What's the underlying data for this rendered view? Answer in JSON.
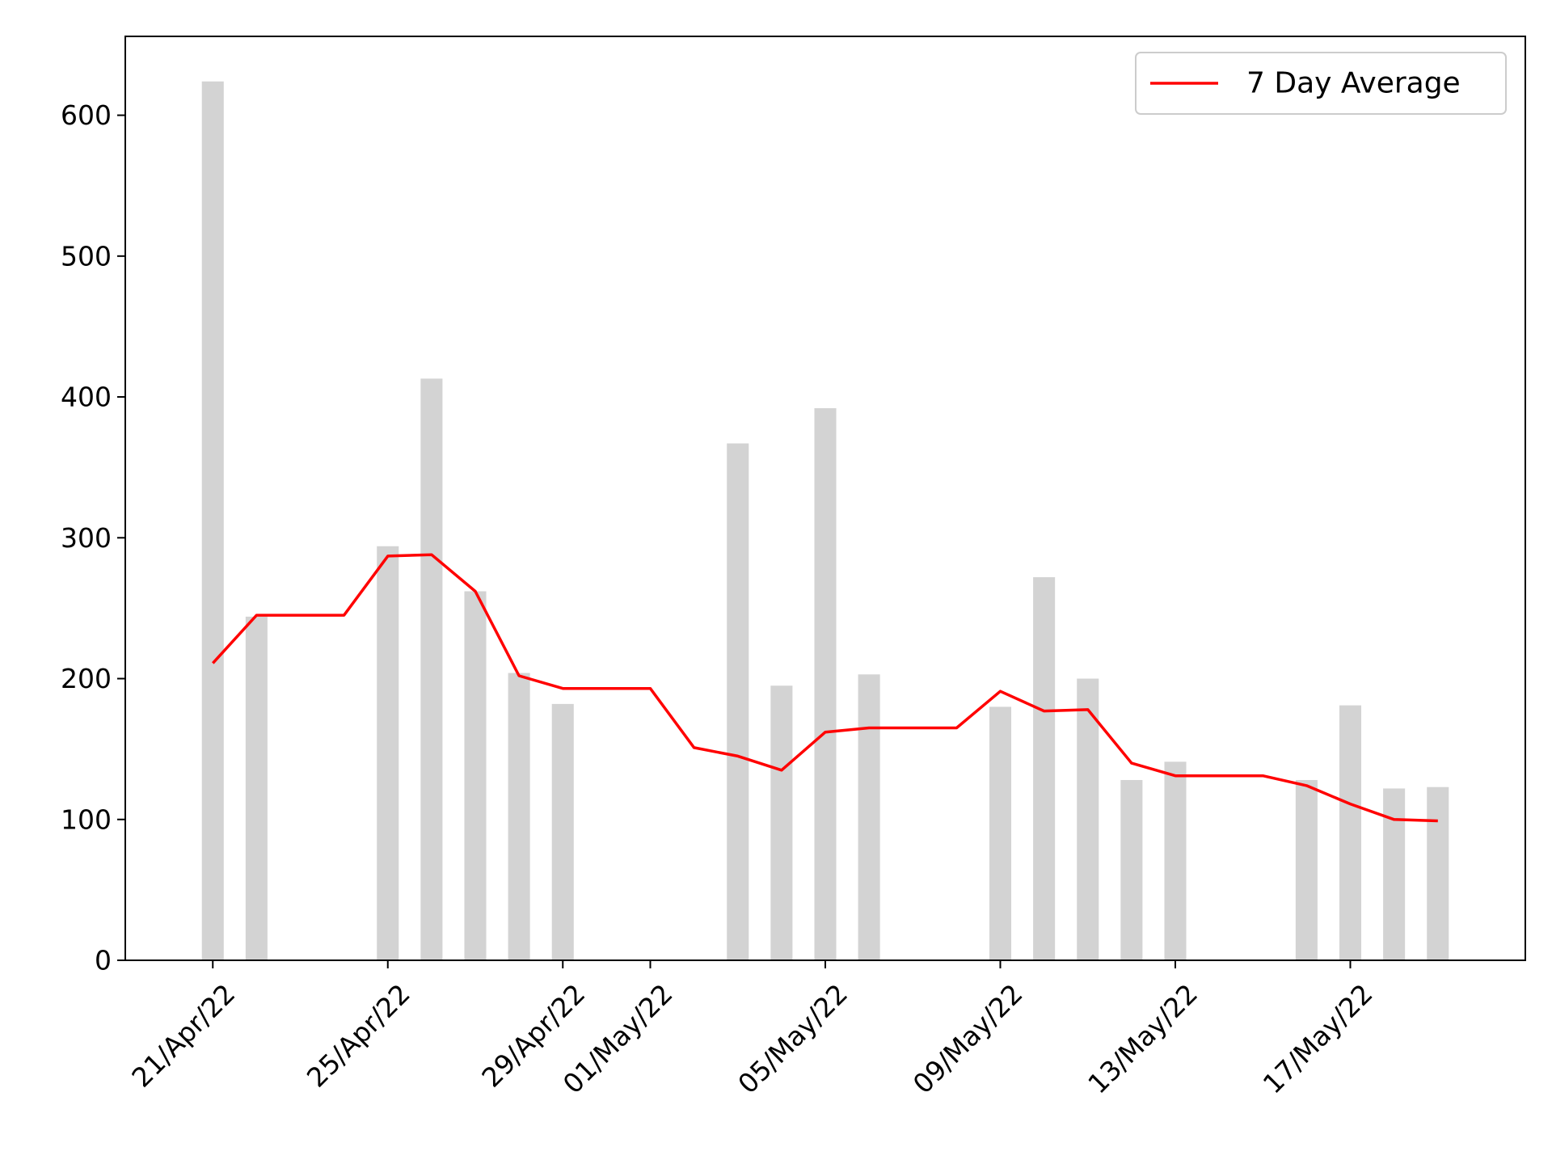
{
  "chart_data": {
    "type": "bar",
    "x_type": "date",
    "x_range": [
      "2022-04-19",
      "2022-05-21"
    ],
    "ylim": [
      0,
      656
    ],
    "grid": false,
    "legend_placement": "top-right",
    "xticks": [
      {
        "date": "2022-04-21",
        "label": "21/Apr/22"
      },
      {
        "date": "2022-04-25",
        "label": "25/Apr/22"
      },
      {
        "date": "2022-04-29",
        "label": "29/Apr/22"
      },
      {
        "date": "2022-05-01",
        "label": "01/May/22"
      },
      {
        "date": "2022-05-05",
        "label": "05/May/22"
      },
      {
        "date": "2022-05-09",
        "label": "09/May/22"
      },
      {
        "date": "2022-05-13",
        "label": "13/May/22"
      },
      {
        "date": "2022-05-17",
        "label": "17/May/22"
      }
    ],
    "yticks": [
      {
        "value": 0,
        "label": "0"
      },
      {
        "value": 100,
        "label": "100"
      },
      {
        "value": 200,
        "label": "200"
      },
      {
        "value": 300,
        "label": "300"
      },
      {
        "value": 400,
        "label": "400"
      },
      {
        "value": 500,
        "label": "500"
      },
      {
        "value": 600,
        "label": "600"
      }
    ],
    "bars": {
      "color": "#d3d3d3",
      "points": [
        {
          "date": "2022-04-21",
          "value": 624
        },
        {
          "date": "2022-04-22",
          "value": 244
        },
        {
          "date": "2022-04-25",
          "value": 294
        },
        {
          "date": "2022-04-26",
          "value": 413
        },
        {
          "date": "2022-04-27",
          "value": 262
        },
        {
          "date": "2022-04-28",
          "value": 204
        },
        {
          "date": "2022-04-29",
          "value": 182
        },
        {
          "date": "2022-05-03",
          "value": 367
        },
        {
          "date": "2022-05-04",
          "value": 195
        },
        {
          "date": "2022-05-05",
          "value": 392
        },
        {
          "date": "2022-05-06",
          "value": 203
        },
        {
          "date": "2022-05-09",
          "value": 180
        },
        {
          "date": "2022-05-10",
          "value": 272
        },
        {
          "date": "2022-05-11",
          "value": 200
        },
        {
          "date": "2022-05-12",
          "value": 128
        },
        {
          "date": "2022-05-13",
          "value": 141
        },
        {
          "date": "2022-05-16",
          "value": 128
        },
        {
          "date": "2022-05-17",
          "value": 181
        },
        {
          "date": "2022-05-18",
          "value": 122
        },
        {
          "date": "2022-05-19",
          "value": 123
        }
      ]
    },
    "series": [
      {
        "name": "7 Day Average",
        "color": "#ff0000",
        "points": [
          {
            "date": "2022-04-21",
            "value": 211
          },
          {
            "date": "2022-04-22",
            "value": 245
          },
          {
            "date": "2022-04-23",
            "value": 245
          },
          {
            "date": "2022-04-24",
            "value": 245
          },
          {
            "date": "2022-04-25",
            "value": 287
          },
          {
            "date": "2022-04-26",
            "value": 288
          },
          {
            "date": "2022-04-27",
            "value": 262
          },
          {
            "date": "2022-04-28",
            "value": 202
          },
          {
            "date": "2022-04-29",
            "value": 193
          },
          {
            "date": "2022-04-30",
            "value": 193
          },
          {
            "date": "2022-05-01",
            "value": 193
          },
          {
            "date": "2022-05-02",
            "value": 151
          },
          {
            "date": "2022-05-03",
            "value": 145
          },
          {
            "date": "2022-05-04",
            "value": 135
          },
          {
            "date": "2022-05-05",
            "value": 162
          },
          {
            "date": "2022-05-06",
            "value": 165
          },
          {
            "date": "2022-05-07",
            "value": 165
          },
          {
            "date": "2022-05-08",
            "value": 165
          },
          {
            "date": "2022-05-09",
            "value": 191
          },
          {
            "date": "2022-05-10",
            "value": 177
          },
          {
            "date": "2022-05-11",
            "value": 178
          },
          {
            "date": "2022-05-12",
            "value": 140
          },
          {
            "date": "2022-05-13",
            "value": 131
          },
          {
            "date": "2022-05-14",
            "value": 131
          },
          {
            "date": "2022-05-15",
            "value": 131
          },
          {
            "date": "2022-05-16",
            "value": 124
          },
          {
            "date": "2022-05-17",
            "value": 111
          },
          {
            "date": "2022-05-18",
            "value": 100
          },
          {
            "date": "2022-05-19",
            "value": 99
          }
        ]
      }
    ],
    "legend": [
      {
        "label": "7 Day Average",
        "color": "#ff0000"
      }
    ]
  }
}
